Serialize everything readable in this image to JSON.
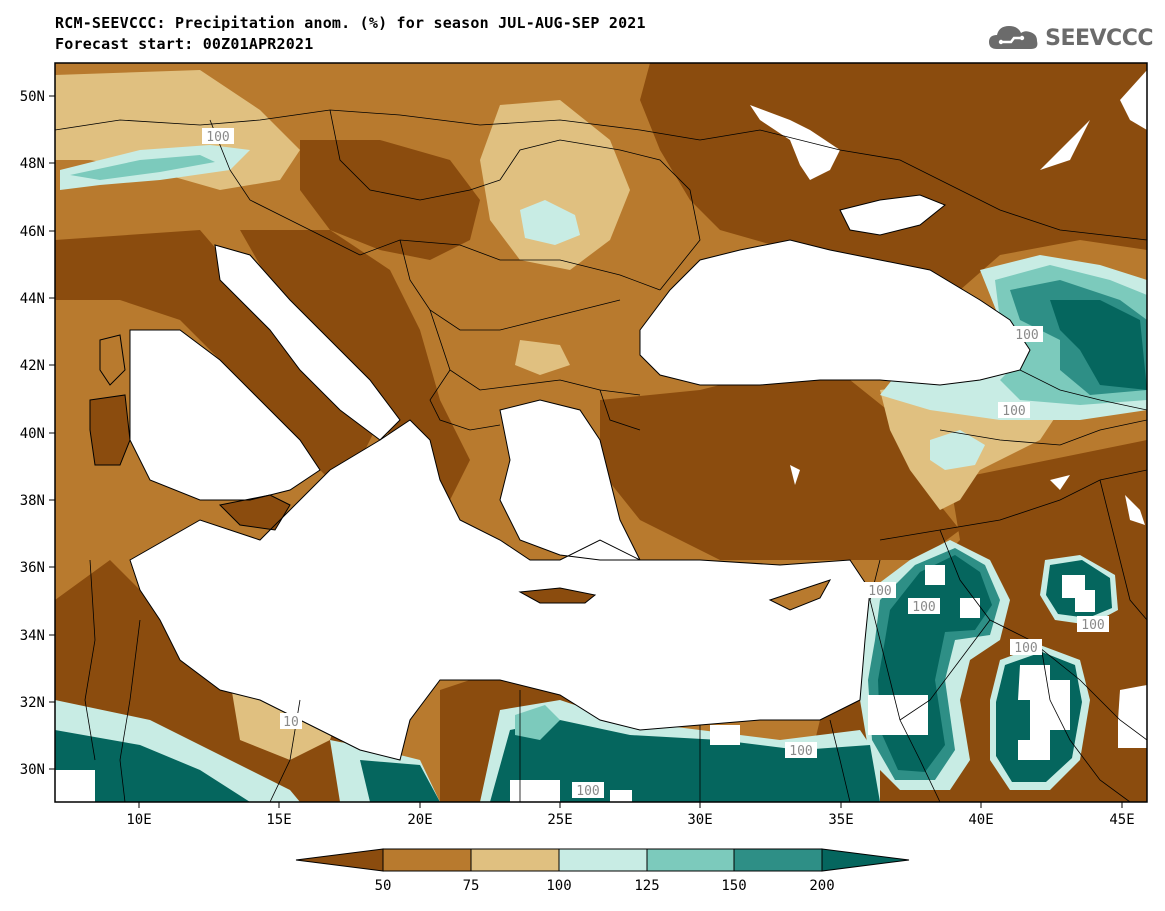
{
  "header": {
    "title": "RCM-SEEVCCC: Precipitation anom. (%) for season JUL-AUG-SEP 2021",
    "subtitle": "Forecast start: 00Z01APR2021"
  },
  "logo": {
    "text": "SEEVCCC",
    "icon": "cloud-icon"
  },
  "axes": {
    "lat_labels": [
      "50N",
      "48N",
      "46N",
      "44N",
      "42N",
      "40N",
      "38N",
      "36N",
      "34N",
      "32N",
      "30N"
    ],
    "lon_labels": [
      "10E",
      "15E",
      "20E",
      "25E",
      "30E",
      "35E",
      "40E",
      "45E"
    ]
  },
  "contour_labels": [
    "100",
    "100",
    "100",
    "100",
    "100",
    "100",
    "100",
    "100",
    "100",
    "10",
    "100"
  ],
  "colorbar": {
    "ticks": [
      "50",
      "75",
      "100",
      "125",
      "150",
      "200"
    ],
    "colors": [
      "#8b4c0e",
      "#b87a2e",
      "#e0c080",
      "#c8ece4",
      "#7ccabc",
      "#2e8f86",
      "#05665e"
    ]
  },
  "colors": {
    "sea": "#ffffff",
    "deep_dry": "#8b4c0e",
    "dry": "#b87a2e",
    "light_dry": "#e0c080",
    "light_wet": "#c8ece4",
    "wet": "#7ccabc",
    "wetter": "#2e8f86",
    "wettest": "#05665e"
  }
}
